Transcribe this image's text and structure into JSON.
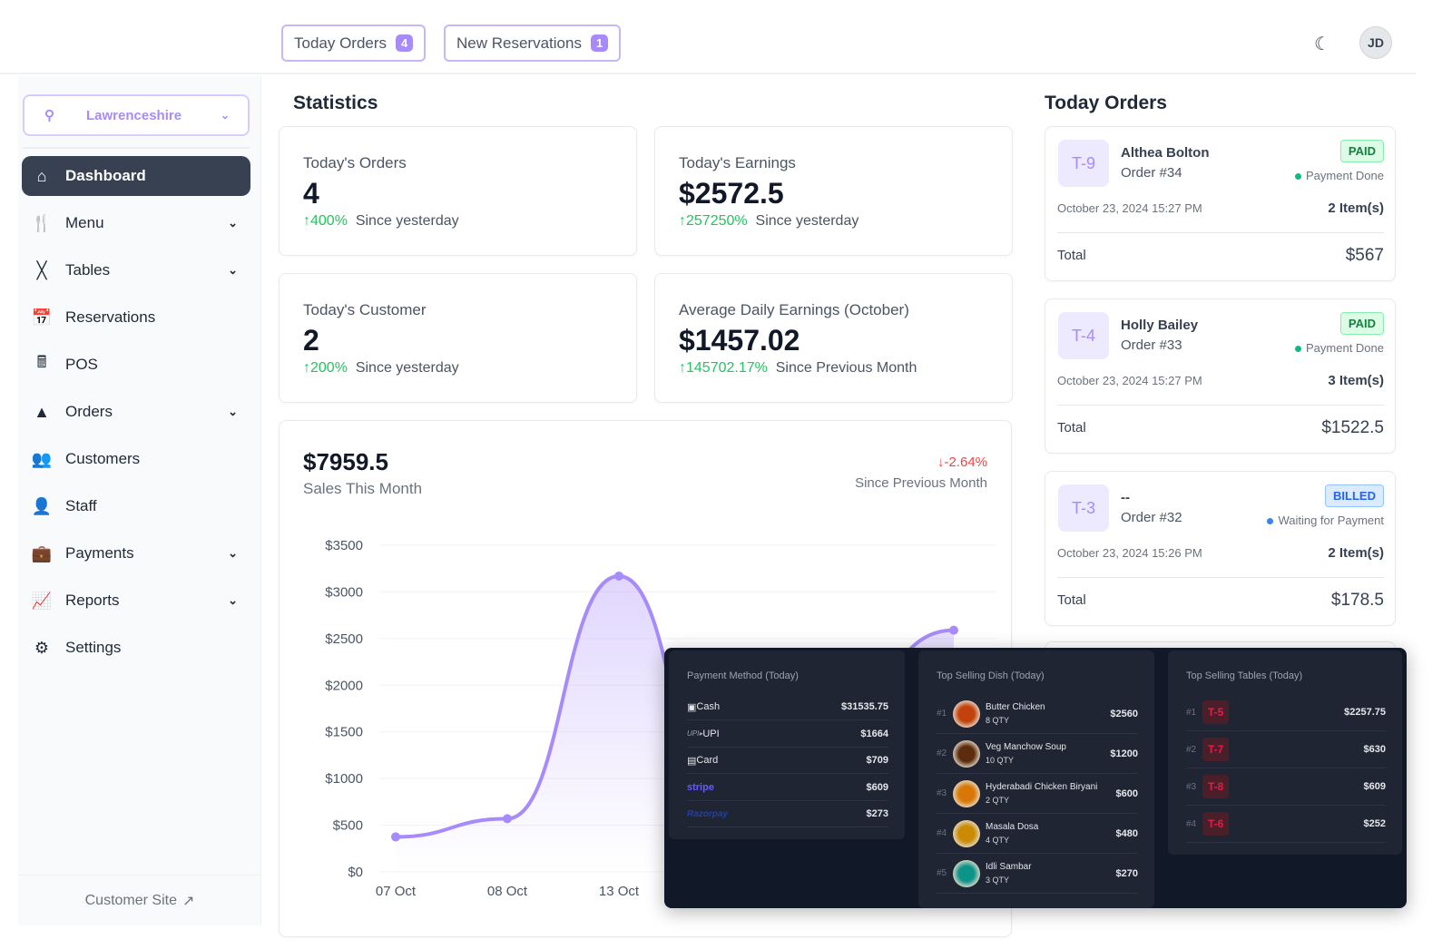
{
  "topbar": {
    "today_orders": {
      "label": "Today Orders",
      "count": "4"
    },
    "new_reservations": {
      "label": "New Reservations",
      "count": "1"
    },
    "avatar_initials": "JD",
    "theme_icon": "moon-icon"
  },
  "sidebar": {
    "location": "Lawrenceshire",
    "items": [
      {
        "label": "Dashboard",
        "icon": "home-icon",
        "active": true,
        "expandable": false
      },
      {
        "label": "Menu",
        "icon": "menu-book-icon",
        "expandable": true
      },
      {
        "label": "Tables",
        "icon": "table-icon",
        "expandable": true
      },
      {
        "label": "Reservations",
        "icon": "calendar-check-icon",
        "expandable": false
      },
      {
        "label": "POS",
        "icon": "pos-terminal-icon",
        "expandable": false
      },
      {
        "label": "Orders",
        "icon": "cloche-icon",
        "expandable": true
      },
      {
        "label": "Customers",
        "icon": "users-icon",
        "expandable": false
      },
      {
        "label": "Staff",
        "icon": "staff-icon",
        "expandable": false
      },
      {
        "label": "Payments",
        "icon": "wallet-icon",
        "expandable": true
      },
      {
        "label": "Reports",
        "icon": "chart-line-icon",
        "expandable": true
      },
      {
        "label": "Settings",
        "icon": "gear-icon",
        "expandable": false
      }
    ],
    "customer_site": "Customer Site"
  },
  "statistics": {
    "title": "Statistics",
    "cards": [
      {
        "title": "Today's Orders",
        "value": "4",
        "change": "400%",
        "since": "Since yesterday"
      },
      {
        "title": "Today's Earnings",
        "value": "$2572.5",
        "change": "257250%",
        "since": "Since yesterday"
      },
      {
        "title": "Today's Customer",
        "value": "2",
        "change": "200%",
        "since": "Since yesterday"
      },
      {
        "title": "Average Daily Earnings (October)",
        "value": "$1457.02",
        "change": "145702.17%",
        "since": "Since Previous Month"
      }
    ]
  },
  "sales": {
    "value": "$7959.5",
    "label": "Sales This Month",
    "change": "-2.64%",
    "since": "Since Previous Month"
  },
  "chart_data": {
    "type": "area",
    "categories": [
      "07 Oct",
      "08 Oct",
      "13 Oct",
      "",
      "",
      ""
    ],
    "values": [
      375,
      570,
      3170,
      null,
      null,
      2590
    ],
    "yticks": [
      "$0",
      "$500",
      "$1000",
      "$1500",
      "$2000",
      "$2500",
      "$3000",
      "$3500"
    ],
    "ylim": [
      0,
      3500
    ],
    "grid": true,
    "color": "#a78bfa"
  },
  "today_orders": {
    "title": "Today Orders",
    "orders": [
      {
        "table": "T-9",
        "name": "Althea Bolton",
        "order": "Order #34",
        "status": "PAID",
        "payment": "Payment Done",
        "date": "October 23, 2024 15:27 PM",
        "items": "2 Item(s)",
        "total_label": "Total",
        "total": "$567"
      },
      {
        "table": "T-4",
        "name": "Holly Bailey",
        "order": "Order #33",
        "status": "PAID",
        "payment": "Payment Done",
        "date": "October 23, 2024 15:27 PM",
        "items": "3 Item(s)",
        "total_label": "Total",
        "total": "$1522.5"
      },
      {
        "table": "T-3",
        "name": "--",
        "order": "Order #32",
        "status": "BILLED",
        "payment": "Waiting for Payment",
        "date": "October 23, 2024 15:26 PM",
        "items": "2 Item(s)",
        "total_label": "Total",
        "total": "$178.5"
      }
    ]
  },
  "overlay": {
    "payment_methods": {
      "title": "Payment Method (Today)",
      "rows": [
        {
          "label": "Cash",
          "amount": "$31535.75"
        },
        {
          "label": "UPI",
          "amount": "$1664"
        },
        {
          "label": "Card",
          "amount": "$709"
        },
        {
          "label": "stripe",
          "amount": "$609"
        },
        {
          "label": "Razorpay",
          "amount": "$273"
        }
      ]
    },
    "top_dishes": {
      "title": "Top Selling Dish (Today)",
      "rows": [
        {
          "rank": "#1",
          "name": "Butter Chicken",
          "qty": "8 QTY",
          "amount": "$2560"
        },
        {
          "rank": "#2",
          "name": "Veg Manchow Soup",
          "qty": "10 QTY",
          "amount": "$1200"
        },
        {
          "rank": "#3",
          "name": "Hyderabadi Chicken Biryani",
          "qty": "2 QTY",
          "amount": "$600"
        },
        {
          "rank": "#4",
          "name": "Masala Dosa",
          "qty": "4 QTY",
          "amount": "$480"
        },
        {
          "rank": "#5",
          "name": "Idli Sambar",
          "qty": "3 QTY",
          "amount": "$270"
        }
      ]
    },
    "top_tables": {
      "title": "Top Selling Tables (Today)",
      "rows": [
        {
          "rank": "#1",
          "table": "T-5",
          "amount": "$2257.75"
        },
        {
          "rank": "#2",
          "table": "T-7",
          "amount": "$630"
        },
        {
          "rank": "#3",
          "table": "T-8",
          "amount": "$609"
        },
        {
          "rank": "#4",
          "table": "T-6",
          "amount": "$252"
        }
      ]
    }
  }
}
